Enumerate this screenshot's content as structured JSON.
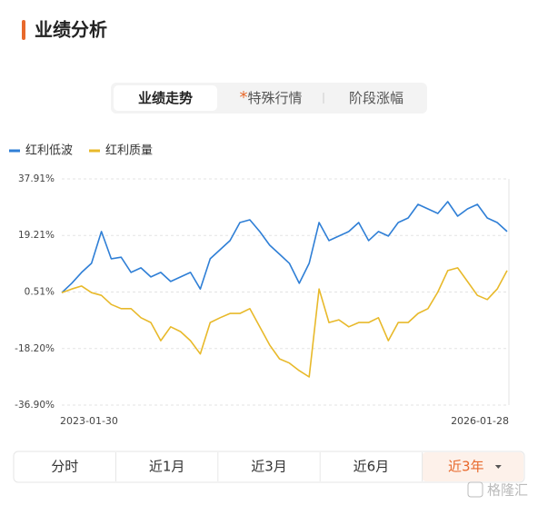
{
  "header": {
    "title": "业绩分析"
  },
  "tabs": [
    {
      "label": "业绩走势"
    },
    {
      "icon": "*",
      "label": "特殊行情"
    },
    {
      "label": "阶段涨幅"
    }
  ],
  "selected_tab": 0,
  "chart_data": {
    "type": "line",
    "categories": [
      "2023-01-30",
      null,
      null,
      null,
      null,
      null,
      null,
      null,
      null,
      null,
      null,
      null,
      null,
      null,
      null,
      null,
      null,
      null,
      null,
      null,
      null,
      null,
      null,
      null,
      null,
      null,
      null,
      null,
      null,
      null,
      null,
      null,
      null,
      null,
      null,
      null,
      null,
      null,
      null,
      null,
      null,
      null,
      null,
      null,
      null,
      "2026-01-28"
    ],
    "series": [
      {
        "name": "红利低波",
        "color": "#2f7fd6",
        "values": [
          0.3,
          3.4,
          7,
          10,
          20.5,
          11.5,
          12,
          7,
          8.5,
          5.5,
          7,
          4,
          5.5,
          7,
          1.5,
          11.5,
          14.5,
          17.5,
          23.5,
          24.4,
          20.5,
          16,
          13,
          10,
          3.4,
          10,
          23.5,
          17.5,
          19,
          20.5,
          23.5,
          17.5,
          20.5,
          19,
          23.5,
          25,
          29.5,
          28,
          26.5,
          30.4,
          25.6,
          28,
          29.5,
          25,
          23.5,
          20.5
        ]
      },
      {
        "name": "红利质量",
        "color": "#e8b92a",
        "values": [
          0.3,
          1.5,
          2.5,
          0.3,
          -0.6,
          -3.6,
          -5,
          -5,
          -8,
          -9.6,
          -15.6,
          -11,
          -12.6,
          -15.6,
          -20,
          -9.6,
          -8,
          -6.6,
          -6.6,
          -5,
          -11,
          -17,
          -21.6,
          -23,
          -25.5,
          -27.6,
          1.5,
          -9.6,
          -8.7,
          -11,
          -9.6,
          -9.6,
          -8,
          -15.6,
          -9.6,
          -9.6,
          -6.6,
          -5,
          0.5,
          7.6,
          8.5,
          4,
          -0.6,
          -2,
          1.5,
          7.6
        ]
      }
    ],
    "ylim": [
      -36.9,
      37.91
    ],
    "yticks": [
      {
        "value": 37.91,
        "label": "37.91%"
      },
      {
        "value": 19.21,
        "label": "19.21%"
      },
      {
        "value": 0.51,
        "label": "0.51%"
      },
      {
        "value": -18.2,
        "label": "-18.20%"
      },
      {
        "value": -36.9,
        "label": "-36.90%"
      }
    ],
    "grid": true
  },
  "period_tabs": [
    "分时",
    "近1月",
    "近3月",
    "近6月",
    "近3年"
  ],
  "selected_period": 4,
  "watermark": "格隆汇"
}
